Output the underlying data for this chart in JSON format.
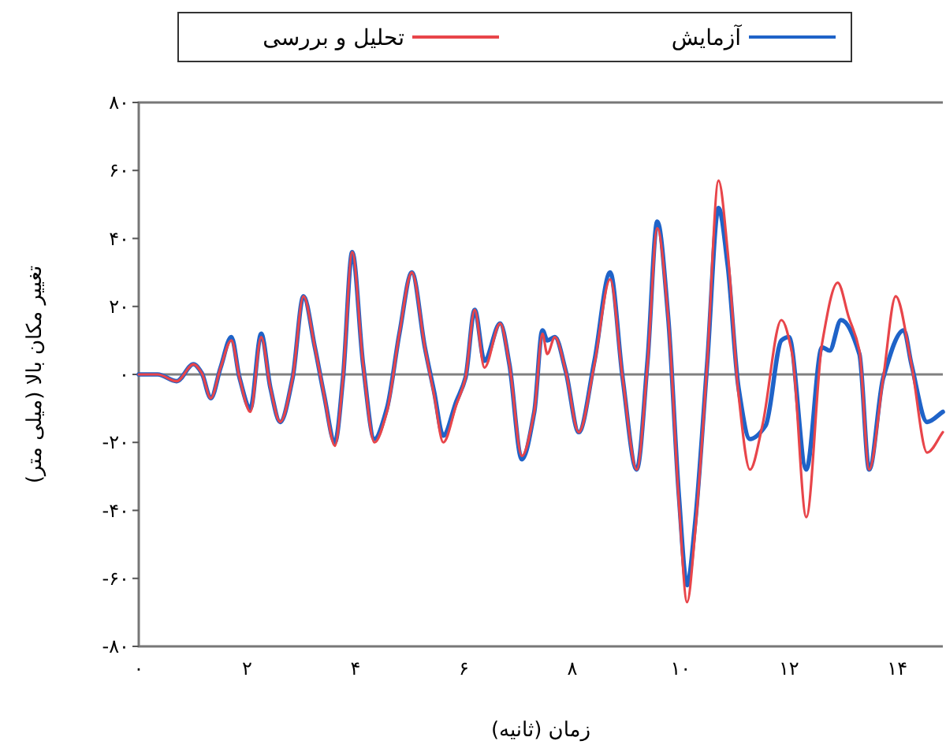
{
  "chart_data": {
    "type": "line",
    "xlabel": "زمان (ثانیه)",
    "ylabel": "تغییر مکان بالا (میلی متر)",
    "legend": "top",
    "line_style": "solid",
    "marker": "none",
    "xlim": [
      0,
      14.84
    ],
    "ylim": [
      -80,
      80
    ],
    "xticks": [
      {
        "value": 0,
        "label": "۰"
      },
      {
        "value": 2,
        "label": "۲"
      },
      {
        "value": 4,
        "label": "۴"
      },
      {
        "value": 6,
        "label": "۶"
      },
      {
        "value": 8,
        "label": "۸"
      },
      {
        "value": 10,
        "label": "۱۰"
      },
      {
        "value": 12,
        "label": "۱۲"
      },
      {
        "value": 14,
        "label": "۱۴"
      }
    ],
    "yticks": [
      {
        "value": -80,
        "label": "-۸۰"
      },
      {
        "value": -60,
        "label": "-۶۰"
      },
      {
        "value": -40,
        "label": "-۴۰"
      },
      {
        "value": -20,
        "label": "-۲۰"
      },
      {
        "value": 0,
        "label": "۰"
      },
      {
        "value": 20,
        "label": "۲۰"
      },
      {
        "value": 40,
        "label": "۴۰"
      },
      {
        "value": 60,
        "label": "۶۰"
      },
      {
        "value": 80,
        "label": "۸۰"
      }
    ],
    "ref_lines": [
      {
        "axis": "y",
        "value": 0,
        "color": "#808080"
      }
    ],
    "series": [
      {
        "name": "تحلیل و بررسی",
        "color": "#e8454a",
        "x": [
          0,
          0.35,
          0.7,
          1.01,
          1.16,
          1.33,
          1.51,
          1.71,
          1.86,
          2.06,
          2.26,
          2.43,
          2.61,
          2.84,
          3.04,
          3.25,
          3.42,
          3.62,
          3.77,
          3.94,
          4.14,
          4.35,
          4.58,
          4.81,
          5.04,
          5.28,
          5.45,
          5.62,
          5.86,
          6.03,
          6.2,
          6.38,
          6.67,
          6.84,
          7.07,
          7.3,
          7.45,
          7.54,
          7.68,
          7.88,
          8.12,
          8.41,
          8.7,
          8.93,
          9.19,
          9.39,
          9.57,
          9.77,
          9.97,
          10.12,
          10.26,
          10.49,
          10.7,
          10.87,
          11.07,
          11.28,
          11.51,
          11.86,
          12.06,
          12.32,
          12.61,
          12.9,
          13.1,
          13.3,
          13.48,
          13.74,
          13.97,
          14.26,
          14.55,
          14.84
        ],
        "values": [
          0,
          0,
          -2,
          3,
          0.5,
          -7,
          2,
          10,
          -1,
          -11,
          11,
          -4,
          -14,
          -1,
          23,
          8,
          -6,
          -21,
          -1,
          36,
          3,
          -20,
          -11,
          12,
          30,
          8,
          -6,
          -20,
          -9,
          -1,
          19,
          2,
          15,
          3,
          -24,
          -11,
          12,
          6,
          11,
          1,
          -17,
          3,
          28,
          -1,
          -28,
          3,
          43,
          17,
          -38,
          -67,
          -48,
          3,
          57,
          36,
          -6,
          -28,
          -15,
          16,
          6,
          -42,
          9,
          27,
          17,
          7,
          -28,
          -1,
          23,
          3,
          -23,
          -17
        ]
      },
      {
        "name": "آزمایش",
        "color": "#1f63c8",
        "x": [
          0,
          0.35,
          0.7,
          1.01,
          1.16,
          1.33,
          1.51,
          1.71,
          1.86,
          2.06,
          2.26,
          2.43,
          2.61,
          2.84,
          3.04,
          3.25,
          3.42,
          3.62,
          3.77,
          3.94,
          4.14,
          4.35,
          4.58,
          4.81,
          5.04,
          5.28,
          5.45,
          5.62,
          5.86,
          6.03,
          6.2,
          6.38,
          6.67,
          6.84,
          7.07,
          7.3,
          7.45,
          7.54,
          7.68,
          7.88,
          8.12,
          8.41,
          8.7,
          8.93,
          9.19,
          9.39,
          9.57,
          9.77,
          9.97,
          10.12,
          10.26,
          10.49,
          10.7,
          10.87,
          11.07,
          11.28,
          11.57,
          11.86,
          12.0,
          12.32,
          12.61,
          12.75,
          12.96,
          13.3,
          13.48,
          13.74,
          14.12,
          14.26,
          14.55,
          14.84
        ],
        "values": [
          0,
          0,
          -2,
          3,
          0.5,
          -7,
          2,
          11,
          -1,
          -10,
          12,
          -4,
          -14,
          -1,
          23,
          8,
          -6,
          -20,
          -1,
          36,
          3,
          -19,
          -10,
          12,
          30,
          8,
          -5,
          -18,
          -8,
          -1,
          19,
          4,
          15,
          3,
          -25,
          -11,
          13,
          10,
          11,
          1,
          -17,
          4,
          30,
          -1,
          -28,
          4,
          45,
          17,
          -36,
          -62,
          -45,
          3,
          49,
          32,
          -4,
          -19,
          -15,
          10,
          11,
          -28,
          8,
          7,
          16,
          6,
          -28,
          -1,
          13,
          3,
          -14,
          -11
        ]
      }
    ]
  }
}
